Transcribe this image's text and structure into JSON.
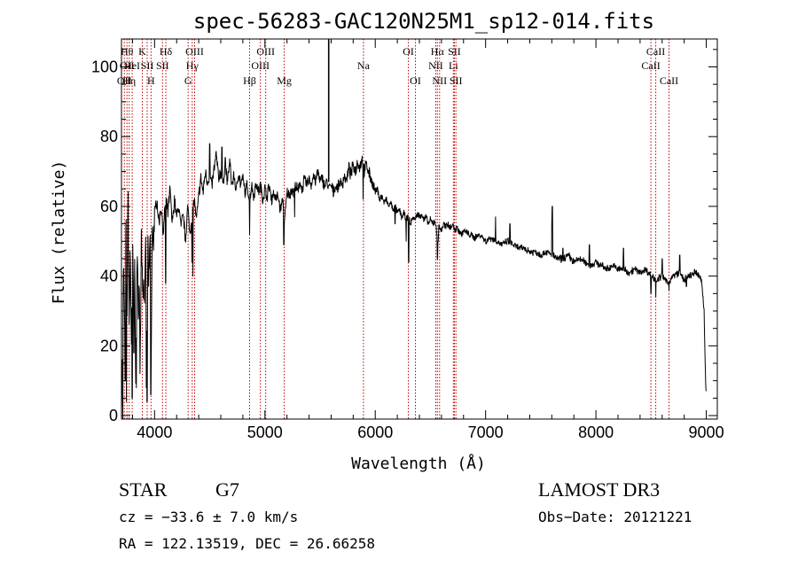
{
  "chart_data": {
    "type": "line",
    "title": "spec-56283-GAC120N25M1_sp12-014.fits",
    "xlabel": "Wavelength (Å)",
    "ylabel": "Flux (relative)",
    "xlim": [
      3700,
      9100
    ],
    "ylim": [
      -1,
      108
    ],
    "x_ticks": [
      4000,
      5000,
      6000,
      7000,
      8000,
      9000
    ],
    "y_ticks": [
      0,
      20,
      40,
      60,
      80,
      100
    ],
    "continuum": [
      [
        3700,
        3
      ],
      [
        3710,
        18
      ],
      [
        3720,
        45
      ],
      [
        3730,
        20
      ],
      [
        3740,
        55
      ],
      [
        3750,
        30
      ],
      [
        3760,
        60
      ],
      [
        3770,
        25
      ],
      [
        3780,
        48
      ],
      [
        3790,
        22
      ],
      [
        3800,
        52
      ],
      [
        3810,
        30
      ],
      [
        3820,
        40
      ],
      [
        3830,
        12
      ],
      [
        3840,
        45
      ],
      [
        3850,
        32
      ],
      [
        3860,
        38
      ],
      [
        3870,
        18
      ],
      [
        3880,
        50
      ],
      [
        3890,
        40
      ],
      [
        3900,
        36
      ],
      [
        3910,
        35
      ],
      [
        3920,
        45
      ],
      [
        3930,
        15
      ],
      [
        3940,
        50
      ],
      [
        3950,
        35
      ],
      [
        3960,
        55
      ],
      [
        3970,
        20
      ],
      [
        3980,
        55
      ],
      [
        3990,
        50
      ],
      [
        4000,
        58
      ],
      [
        4020,
        62
      ],
      [
        4040,
        55
      ],
      [
        4060,
        60
      ],
      [
        4080,
        52
      ],
      [
        4100,
        63
      ],
      [
        4120,
        58
      ],
      [
        4140,
        65
      ],
      [
        4160,
        55
      ],
      [
        4180,
        62
      ],
      [
        4200,
        57
      ],
      [
        4220,
        60
      ],
      [
        4240,
        54
      ],
      [
        4260,
        58
      ],
      [
        4280,
        50
      ],
      [
        4300,
        60
      ],
      [
        4320,
        52
      ],
      [
        4340,
        58
      ],
      [
        4360,
        62
      ],
      [
        4380,
        56
      ],
      [
        4400,
        63
      ],
      [
        4420,
        68
      ],
      [
        4440,
        64
      ],
      [
        4460,
        70
      ],
      [
        4480,
        67
      ],
      [
        4500,
        69
      ],
      [
        4520,
        66
      ],
      [
        4540,
        71
      ],
      [
        4560,
        75
      ],
      [
        4580,
        68
      ],
      [
        4600,
        70
      ],
      [
        4620,
        66
      ],
      [
        4640,
        72
      ],
      [
        4660,
        67
      ],
      [
        4680,
        73
      ],
      [
        4700,
        66
      ],
      [
        4720,
        69
      ],
      [
        4740,
        64
      ],
      [
        4760,
        70
      ],
      [
        4780,
        66
      ],
      [
        4800,
        68
      ],
      [
        4820,
        64
      ],
      [
        4840,
        66
      ],
      [
        4860,
        62
      ],
      [
        4880,
        66
      ],
      [
        4900,
        63
      ],
      [
        4920,
        67
      ],
      [
        4940,
        64
      ],
      [
        4960,
        66
      ],
      [
        4980,
        62
      ],
      [
        5000,
        65
      ],
      [
        5020,
        63
      ],
      [
        5040,
        66
      ],
      [
        5060,
        62
      ],
      [
        5080,
        64
      ],
      [
        5100,
        62
      ],
      [
        5120,
        63
      ],
      [
        5140,
        59
      ],
      [
        5160,
        62
      ],
      [
        5180,
        56
      ],
      [
        5200,
        64
      ],
      [
        5220,
        63
      ],
      [
        5240,
        65
      ],
      [
        5260,
        64
      ],
      [
        5280,
        66
      ],
      [
        5300,
        64
      ],
      [
        5320,
        67
      ],
      [
        5340,
        65
      ],
      [
        5360,
        68
      ],
      [
        5380,
        66
      ],
      [
        5400,
        68
      ],
      [
        5420,
        66
      ],
      [
        5440,
        69
      ],
      [
        5460,
        67
      ],
      [
        5480,
        70
      ],
      [
        5500,
        67
      ],
      [
        5520,
        68
      ],
      [
        5540,
        66
      ],
      [
        5560,
        67
      ],
      [
        5580,
        65
      ],
      [
        5600,
        66
      ],
      [
        5620,
        64
      ],
      [
        5640,
        66
      ],
      [
        5660,
        65
      ],
      [
        5680,
        67
      ],
      [
        5700,
        66
      ],
      [
        5720,
        69
      ],
      [
        5740,
        67
      ],
      [
        5760,
        71
      ],
      [
        5780,
        69
      ],
      [
        5800,
        72
      ],
      [
        5820,
        70
      ],
      [
        5840,
        73
      ],
      [
        5860,
        71
      ],
      [
        5880,
        74
      ],
      [
        5900,
        70
      ],
      [
        5920,
        72
      ],
      [
        5940,
        70
      ],
      [
        5960,
        68
      ],
      [
        5980,
        66
      ],
      [
        6000,
        64
      ],
      [
        6020,
        65
      ],
      [
        6040,
        62
      ],
      [
        6060,
        63
      ],
      [
        6080,
        61
      ],
      [
        6100,
        62
      ],
      [
        6120,
        60
      ],
      [
        6140,
        61
      ],
      [
        6160,
        59
      ],
      [
        6180,
        60
      ],
      [
        6200,
        58
      ],
      [
        6220,
        59
      ],
      [
        6240,
        57
      ],
      [
        6260,
        58
      ],
      [
        6280,
        56
      ],
      [
        6300,
        57
      ],
      [
        6320,
        55
      ],
      [
        6340,
        57
      ],
      [
        6360,
        56
      ],
      [
        6380,
        58
      ],
      [
        6400,
        57
      ],
      [
        6420,
        58
      ],
      [
        6440,
        56
      ],
      [
        6460,
        57
      ],
      [
        6480,
        55
      ],
      [
        6500,
        56
      ],
      [
        6520,
        55
      ],
      [
        6540,
        56
      ],
      [
        6560,
        52
      ],
      [
        6580,
        54
      ],
      [
        6600,
        53
      ],
      [
        6620,
        55
      ],
      [
        6640,
        54
      ],
      [
        6660,
        55
      ],
      [
        6680,
        54
      ],
      [
        6700,
        55
      ],
      [
        6720,
        53
      ],
      [
        6740,
        54
      ],
      [
        6760,
        53
      ],
      [
        6780,
        52
      ],
      [
        6800,
        53
      ],
      [
        6850,
        52
      ],
      [
        6900,
        51
      ],
      [
        6950,
        52
      ],
      [
        7000,
        50
      ],
      [
        7050,
        51
      ],
      [
        7100,
        50
      ],
      [
        7150,
        49
      ],
      [
        7200,
        50
      ],
      [
        7250,
        49
      ],
      [
        7300,
        48
      ],
      [
        7350,
        48
      ],
      [
        7400,
        47
      ],
      [
        7450,
        47
      ],
      [
        7500,
        46
      ],
      [
        7550,
        47
      ],
      [
        7600,
        46
      ],
      [
        7650,
        45
      ],
      [
        7700,
        45
      ],
      [
        7750,
        46
      ],
      [
        7800,
        44
      ],
      [
        7850,
        45
      ],
      [
        7900,
        44
      ],
      [
        7950,
        43
      ],
      [
        8000,
        44
      ],
      [
        8050,
        43
      ],
      [
        8100,
        42
      ],
      [
        8150,
        43
      ],
      [
        8200,
        42
      ],
      [
        8250,
        42
      ],
      [
        8300,
        41
      ],
      [
        8350,
        42
      ],
      [
        8400,
        41
      ],
      [
        8450,
        42
      ],
      [
        8500,
        40
      ],
      [
        8550,
        39
      ],
      [
        8600,
        40
      ],
      [
        8650,
        38
      ],
      [
        8700,
        40
      ],
      [
        8750,
        41
      ],
      [
        8800,
        39
      ],
      [
        8850,
        40
      ],
      [
        8900,
        41
      ],
      [
        8940,
        40
      ],
      [
        8960,
        38
      ],
      [
        8980,
        30
      ],
      [
        8990,
        15
      ],
      [
        9000,
        5
      ]
    ],
    "features": [
      [
        3705,
        8
      ],
      [
        3712,
        -1
      ],
      [
        3735,
        10
      ],
      [
        3745,
        4
      ],
      [
        3798,
        5
      ],
      [
        3812,
        18
      ],
      [
        3835,
        8
      ],
      [
        3868,
        12
      ],
      [
        3925,
        8
      ],
      [
        3932,
        4
      ],
      [
        3965,
        6
      ],
      [
        4101,
        38
      ],
      [
        4340,
        44
      ],
      [
        4348,
        40
      ],
      [
        4500,
        78
      ],
      [
        4610,
        77
      ],
      [
        4640,
        74
      ],
      [
        4861,
        52
      ],
      [
        5172,
        49
      ],
      [
        5269,
        57
      ],
      [
        5580,
        66
      ],
      [
        5890,
        62
      ],
      [
        6180,
        55
      ],
      [
        6280,
        50
      ],
      [
        6302,
        44
      ],
      [
        6318,
        55
      ],
      [
        6563,
        45
      ],
      [
        6570,
        50
      ],
      [
        6705,
        55
      ],
      [
        7090,
        57
      ],
      [
        7220,
        55
      ],
      [
        7600,
        55
      ],
      [
        7605,
        60
      ],
      [
        7700,
        48
      ],
      [
        7940,
        49
      ],
      [
        8250,
        48
      ],
      [
        8498,
        35
      ],
      [
        8542,
        34
      ],
      [
        8600,
        45
      ],
      [
        8662,
        36
      ],
      [
        8760,
        46
      ],
      [
        8820,
        37
      ]
    ],
    "spike": {
      "x": 5578,
      "y_top": 108,
      "y_base": 67
    },
    "lines": [
      {
        "x": 3726,
        "labels": [
          "OII"
        ],
        "rows": [
          3
        ]
      },
      {
        "x": 3750,
        "labels": [
          "Hθ",
          "OII"
        ],
        "rows": [
          1,
          2
        ]
      },
      {
        "x": 3770,
        "labels": [
          "Hη"
        ],
        "rows": [
          3
        ]
      },
      {
        "x": 3797,
        "labels": [
          "HeI"
        ],
        "rows": [
          2
        ]
      },
      {
        "x": 3889,
        "labels": [
          "K"
        ],
        "rows": [
          1
        ]
      },
      {
        "x": 3933,
        "labels": [
          "SII"
        ],
        "rows": [
          2
        ]
      },
      {
        "x": 3968,
        "labels": [
          "H"
        ],
        "rows": [
          3
        ]
      },
      {
        "x": 4072,
        "labels": [
          "SII"
        ],
        "rows": [
          2
        ]
      },
      {
        "x": 4102,
        "labels": [
          "Hδ"
        ],
        "rows": [
          1
        ]
      },
      {
        "x": 4304,
        "labels": [
          "G"
        ],
        "rows": [
          3
        ]
      },
      {
        "x": 4341,
        "labels": [
          "Hγ"
        ],
        "rows": [
          2
        ]
      },
      {
        "x": 4363,
        "labels": [
          "OIII"
        ],
        "rows": [
          1
        ]
      },
      {
        "x": 4861,
        "labels": [
          "Hβ"
        ],
        "rows": [
          3
        ]
      },
      {
        "x": 4959,
        "labels": [
          "OIII"
        ],
        "rows": [
          2
        ]
      },
      {
        "x": 5007,
        "labels": [
          "OIII"
        ],
        "rows": [
          1
        ]
      },
      {
        "x": 5175,
        "labels": [
          "Mg"
        ],
        "rows": [
          3
        ]
      },
      {
        "x": 5893,
        "labels": [
          "Na"
        ],
        "rows": [
          2
        ]
      },
      {
        "x": 6300,
        "labels": [
          "OI"
        ],
        "rows": [
          1
        ]
      },
      {
        "x": 6364,
        "labels": [
          "OI"
        ],
        "rows": [
          3
        ]
      },
      {
        "x": 6548,
        "labels": [
          "NII"
        ],
        "rows": [
          2
        ]
      },
      {
        "x": 6563,
        "labels": [
          "Hα"
        ],
        "rows": [
          1
        ]
      },
      {
        "x": 6583,
        "labels": [
          "NII"
        ],
        "rows": [
          3
        ]
      },
      {
        "x": 6708,
        "labels": [
          "Li"
        ],
        "rows": [
          2
        ]
      },
      {
        "x": 6717,
        "labels": [
          "SII"
        ],
        "rows": [
          1
        ]
      },
      {
        "x": 6731,
        "labels": [
          "SII"
        ],
        "rows": [
          3
        ]
      },
      {
        "x": 8498,
        "labels": [
          "CaII"
        ],
        "rows": [
          2
        ]
      },
      {
        "x": 8542,
        "labels": [
          "CaII"
        ],
        "rows": [
          1
        ]
      },
      {
        "x": 8662,
        "labels": [
          "CaII"
        ],
        "rows": [
          3
        ]
      }
    ],
    "colors": {
      "trace": "#000000",
      "line_markers": "#c00000",
      "axes": "#000000"
    }
  },
  "info": {
    "class": "STAR",
    "subclass": "G7",
    "survey": "LAMOST DR3",
    "cz": "cz = −33.6 ± 7.0 km/s",
    "obs_date": "Obs−Date: 20121221",
    "radec": "RA = 122.13519, DEC =  26.66258"
  }
}
